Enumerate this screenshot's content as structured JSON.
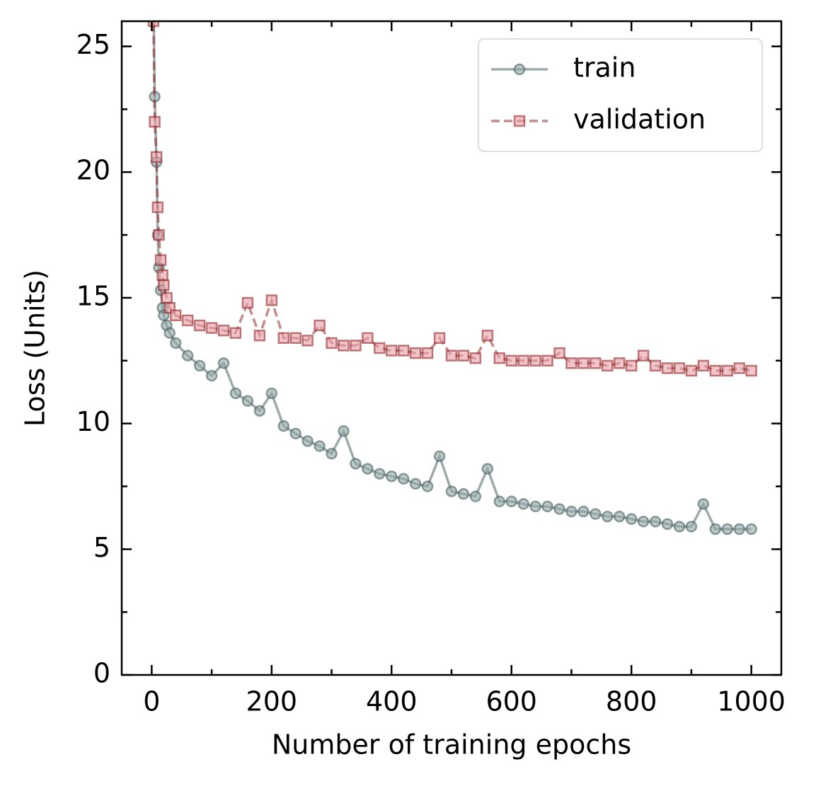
{
  "chart_data": {
    "type": "line",
    "xlabel": "Number of training epochs",
    "ylabel": "Loss (Units)",
    "x": [
      1,
      3,
      5,
      8,
      10,
      12,
      15,
      18,
      20,
      25,
      30,
      40,
      60,
      80,
      100,
      120,
      140,
      160,
      180,
      200,
      220,
      240,
      260,
      280,
      300,
      320,
      340,
      360,
      380,
      400,
      420,
      440,
      460,
      480,
      500,
      520,
      540,
      560,
      580,
      600,
      620,
      640,
      660,
      680,
      700,
      720,
      740,
      760,
      780,
      800,
      820,
      840,
      860,
      880,
      900,
      920,
      940,
      960,
      980,
      1000
    ],
    "series": [
      {
        "name": "train",
        "color": "#3d5656",
        "face": "#93a6a6",
        "marker": "circle",
        "dash": false,
        "values": [
          32,
          27,
          23,
          20.4,
          17.5,
          16.2,
          15.3,
          14.6,
          14.3,
          13.9,
          13.6,
          13.2,
          12.7,
          12.3,
          11.9,
          12.4,
          11.2,
          10.9,
          10.5,
          11.2,
          9.9,
          9.6,
          9.3,
          9.1,
          8.8,
          9.7,
          8.4,
          8.2,
          8.0,
          7.9,
          7.8,
          7.6,
          7.5,
          8.7,
          7.3,
          7.2,
          7.1,
          8.2,
          6.9,
          6.9,
          6.8,
          6.7,
          6.7,
          6.6,
          6.5,
          6.5,
          6.4,
          6.3,
          6.3,
          6.2,
          6.1,
          6.1,
          6.0,
          5.9,
          5.9,
          6.8,
          5.8,
          5.8,
          5.8,
          5.8
        ]
      },
      {
        "name": "validation",
        "color": "#8b1a1a",
        "face": "#e8a0a8",
        "marker": "square",
        "dash": true,
        "values": [
          32,
          26,
          22,
          20.6,
          18.6,
          17.5,
          16.5,
          15.9,
          15.5,
          15.0,
          14.6,
          14.3,
          14.1,
          13.9,
          13.8,
          13.7,
          13.6,
          14.8,
          13.5,
          14.9,
          13.4,
          13.4,
          13.3,
          13.9,
          13.2,
          13.1,
          13.1,
          13.4,
          13.0,
          12.9,
          12.9,
          12.8,
          12.8,
          13.4,
          12.7,
          12.7,
          12.6,
          13.5,
          12.6,
          12.5,
          12.5,
          12.5,
          12.5,
          12.8,
          12.4,
          12.4,
          12.4,
          12.3,
          12.4,
          12.3,
          12.7,
          12.3,
          12.2,
          12.2,
          12.1,
          12.3,
          12.1,
          12.1,
          12.2,
          12.1
        ]
      }
    ],
    "xlim": [
      -50,
      1050
    ],
    "ylim": [
      0,
      26
    ],
    "xticks": [
      0,
      200,
      400,
      600,
      800,
      1000
    ],
    "yticks": [
      0,
      5,
      10,
      15,
      20,
      25
    ],
    "xminor": [
      100,
      300,
      500,
      700,
      900
    ],
    "yminor": [
      2.5,
      7.5,
      12.5,
      17.5,
      22.5
    ],
    "legend": "upper right",
    "grid": false
  }
}
